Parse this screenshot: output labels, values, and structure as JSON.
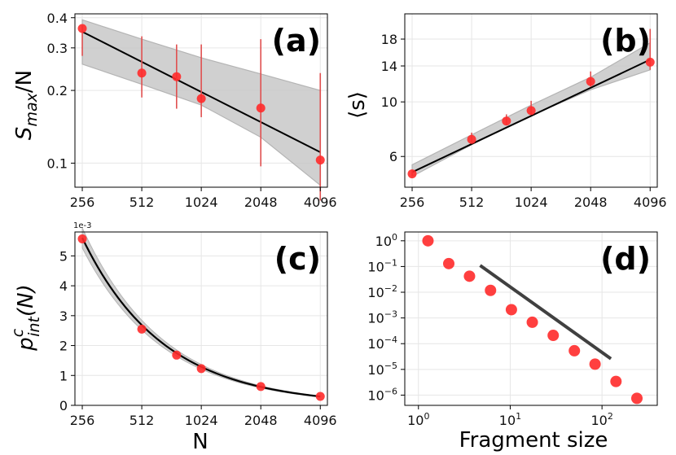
{
  "colors": {
    "marker": "#ff2a2a",
    "errorbar": "#e05050",
    "fit": "#000000",
    "band": "#c8c8c8",
    "band_edge": "#a8a8a8",
    "grid": "#e6e6e6",
    "powerline": "#404040"
  },
  "xlabels": {
    "main": "N",
    "d": "Fragment size"
  },
  "offset_note_c": "1e-3",
  "chart_data": [
    {
      "id": "a",
      "type": "scatter",
      "panel_label": "(a)",
      "ylabel": {
        "main": "S",
        "sub": "max",
        "rest": "/N"
      },
      "xscale": "log2",
      "yscale": "log10",
      "xlim": [
        235,
        4450
      ],
      "ylim": [
        0.0795,
        0.415
      ],
      "xticks": [
        256,
        512,
        1024,
        2048,
        4096
      ],
      "xtick_labels": [
        "256",
        "512",
        "1024",
        "2048",
        "4096"
      ],
      "yticks": [
        0.1,
        0.2,
        0.3,
        0.4
      ],
      "ytick_labels": [
        "0.1",
        "0.2",
        "0.3",
        "0.4"
      ],
      "x": [
        256,
        512,
        768,
        1024,
        2048,
        4096
      ],
      "y": [
        0.361,
        0.236,
        0.228,
        0.185,
        0.169,
        0.103
      ],
      "err_low": [
        0.278,
        0.187,
        0.168,
        0.155,
        0.097,
        0.07
      ],
      "err_high": [
        0.37,
        0.335,
        0.31,
        0.31,
        0.326,
        0.236
      ],
      "fit": [
        [
          256,
          0.35
        ],
        [
          4096,
          0.111
        ]
      ],
      "band_upper": [
        [
          256,
          0.392
        ],
        [
          512,
          0.326
        ],
        [
          1024,
          0.273
        ],
        [
          2048,
          0.234
        ],
        [
          4096,
          0.2
        ]
      ],
      "band_lower": [
        [
          256,
          0.257
        ],
        [
          512,
          0.212
        ],
        [
          1024,
          0.174
        ],
        [
          2048,
          0.128
        ],
        [
          4096,
          0.081
        ]
      ]
    },
    {
      "id": "b",
      "type": "scatter",
      "panel_label": "(b)",
      "ylabel": {
        "main": "⟨s⟩"
      },
      "xscale": "log2",
      "yscale": "log10",
      "xlim": [
        235,
        4450
      ],
      "ylim": [
        4.5,
        22.8
      ],
      "xticks": [
        256,
        512,
        1024,
        2048,
        4096
      ],
      "xtick_labels": [
        "256",
        "512",
        "1024",
        "2048",
        "4096"
      ],
      "yticks": [
        6,
        10,
        14,
        18
      ],
      "ytick_labels": [
        "6",
        "10",
        "14",
        "18"
      ],
      "x": [
        256,
        512,
        768,
        1024,
        2048,
        4096
      ],
      "y": [
        5.1,
        7.04,
        8.36,
        9.22,
        12.1,
        14.5
      ],
      "err_low": [
        5.0,
        6.85,
        8.05,
        8.9,
        11.5,
        13.5
      ],
      "err_high": [
        5.3,
        7.5,
        8.9,
        10.1,
        13.3,
        19.8
      ],
      "fit": [
        [
          256,
          5.18
        ],
        [
          4096,
          14.85
        ]
      ],
      "band_upper": [
        [
          256,
          5.55
        ],
        [
          512,
          7.35
        ],
        [
          1024,
          9.7
        ],
        [
          2048,
          12.6
        ],
        [
          4096,
          17.4
        ]
      ],
      "band_lower": [
        [
          256,
          4.98
        ],
        [
          512,
          6.7
        ],
        [
          1024,
          8.8
        ],
        [
          2048,
          11.2
        ],
        [
          4096,
          13.5
        ]
      ]
    },
    {
      "id": "c",
      "type": "scatter",
      "panel_label": "(c)",
      "ylabel": {
        "main": "p",
        "sup": "c",
        "sub": "int",
        "rest": "(N)"
      },
      "xscale": "log2",
      "yscale": "linear",
      "xlim": [
        235,
        4450
      ],
      "ylim": [
        0,
        5.8
      ],
      "xticks": [
        256,
        512,
        1024,
        2048,
        4096
      ],
      "xtick_labels": [
        "256",
        "512",
        "1024",
        "2048",
        "4096"
      ],
      "yticks": [
        0,
        1,
        2,
        3,
        4,
        5
      ],
      "ytick_labels": [
        "0",
        "1",
        "2",
        "3",
        "4",
        "5"
      ],
      "x": [
        256,
        512,
        768,
        1024,
        2048,
        4096
      ],
      "y": [
        5.57,
        2.55,
        1.68,
        1.23,
        0.63,
        0.3
      ],
      "fit_curve": {
        "amplitude": 5.6,
        "exponent": -1.06,
        "x0": 256
      },
      "band_frac": 0.06
    },
    {
      "id": "d",
      "type": "scatter",
      "panel_label": "(d)",
      "xlabel": "Fragment size",
      "xscale": "log10",
      "yscale": "log10",
      "xlim": [
        0.71,
        400
      ],
      "ylim": [
        4e-07,
        2.2
      ],
      "xticks": [
        1,
        10,
        100
      ],
      "xtick_labels": [
        {
          "base": "10",
          "exp": "0"
        },
        {
          "base": "10",
          "exp": "1"
        },
        {
          "base": "10",
          "exp": "2"
        }
      ],
      "yticks": [
        1e-06,
        1e-05,
        0.0001,
        0.001,
        0.01,
        0.1,
        1
      ],
      "ytick_labels": [
        {
          "base": "10",
          "exp": "−6"
        },
        {
          "base": "10",
          "exp": "−5"
        },
        {
          "base": "10",
          "exp": "−4"
        },
        {
          "base": "10",
          "exp": "−3"
        },
        {
          "base": "10",
          "exp": "−2"
        },
        {
          "base": "10",
          "exp": "−1"
        },
        {
          "base": "10",
          "exp": "0"
        }
      ],
      "x": [
        1.27,
        2.14,
        3.6,
        6.1,
        10.3,
        17.4,
        29.4,
        50,
        84,
        142,
        240
      ],
      "y": [
        1.0,
        0.13,
        0.042,
        0.0118,
        0.0021,
        0.00068,
        0.00021,
        5.3e-05,
        1.6e-05,
        3.4e-06,
        7.5e-07
      ],
      "power_line": [
        [
          4.7,
          0.11
        ],
        [
          125,
          2.6e-05
        ]
      ]
    }
  ]
}
